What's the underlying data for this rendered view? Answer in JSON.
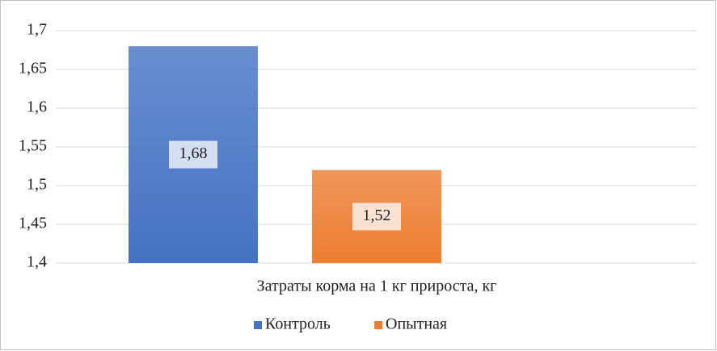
{
  "chart_data": {
    "type": "bar",
    "categories": [
      "Затраты корма на 1 кг прироста, кг"
    ],
    "series": [
      {
        "name": "Контроль",
        "color": "#4472c4",
        "values": [
          1.68
        ],
        "value_labels": [
          "1,68"
        ]
      },
      {
        "name": "Опытная",
        "color": "#ed7d31",
        "values": [
          1.52
        ],
        "value_labels": [
          "1,52"
        ]
      }
    ],
    "ylim": [
      1.4,
      1.7
    ],
    "yticks": [
      {
        "value": 1.4,
        "label": "1,4"
      },
      {
        "value": 1.45,
        "label": "1,45"
      },
      {
        "value": 1.5,
        "label": "1,5"
      },
      {
        "value": 1.55,
        "label": "1,55"
      },
      {
        "value": 1.6,
        "label": "1,6"
      },
      {
        "value": 1.65,
        "label": "1,65"
      },
      {
        "value": 1.7,
        "label": "1,7"
      }
    ],
    "grid": true,
    "legend": "bottom"
  }
}
